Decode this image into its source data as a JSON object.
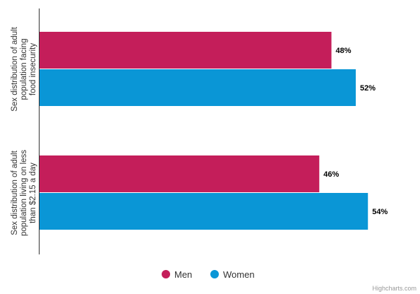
{
  "chart_data": {
    "type": "bar",
    "orientation": "horizontal",
    "categories": [
      "Sex distribution of adult population facing food insecurity",
      "Sex distribution of adult population living on less than $2.15 a day"
    ],
    "category_lines": [
      [
        "Sex distribution of adult",
        "population facing",
        "food insecurity"
      ],
      [
        "Sex distribution of adult",
        "population living on less",
        "than $2.15 a day"
      ]
    ],
    "series": [
      {
        "name": "Men",
        "color": "#c41e5a",
        "values": [
          48,
          46
        ],
        "labels": [
          "48%",
          "46%"
        ]
      },
      {
        "name": "Women",
        "color": "#0a96d6",
        "values": [
          52,
          54
        ],
        "labels": [
          "52%",
          "54%"
        ]
      }
    ],
    "xlim": [
      0,
      60
    ],
    "grid": false,
    "legend_position": "bottom-center",
    "credit": "Highcharts.com"
  }
}
